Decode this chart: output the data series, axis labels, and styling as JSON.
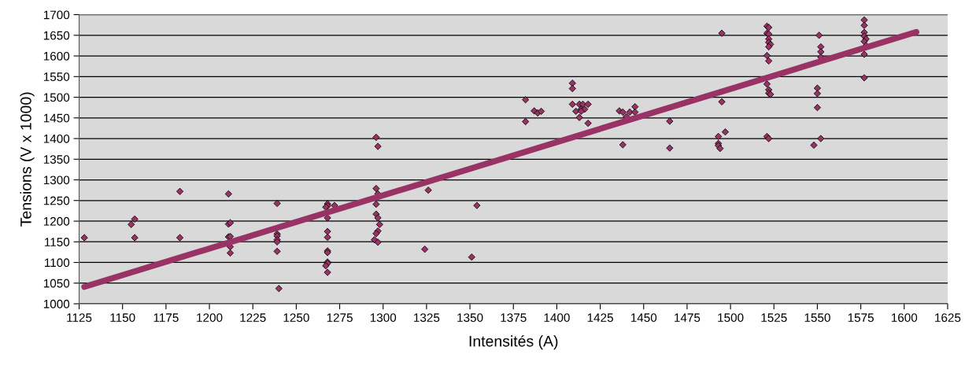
{
  "chart_data": {
    "type": "scatter",
    "xlabel": "Intensités (A)",
    "ylabel": "Tensions (V x 1000)",
    "xlim": [
      1125,
      1625
    ],
    "ylim": [
      1000,
      1700
    ],
    "xticks": [
      1125,
      1150,
      1175,
      1200,
      1225,
      1250,
      1275,
      1300,
      1325,
      1350,
      1375,
      1400,
      1425,
      1450,
      1475,
      1500,
      1525,
      1550,
      1575,
      1600,
      1625
    ],
    "yticks": [
      1000,
      1050,
      1100,
      1150,
      1200,
      1250,
      1300,
      1350,
      1400,
      1450,
      1500,
      1550,
      1600,
      1650,
      1700
    ],
    "grid": "y",
    "legend": false,
    "series": [
      {
        "marker": "diamond",
        "color": "#993366",
        "x": [
          1128,
          1155,
          1157,
          1157,
          1183,
          1183,
          1211,
          1211,
          1212,
          1211,
          1212,
          1212,
          1212,
          1239,
          1239,
          1239,
          1239,
          1239,
          1239,
          1240,
          1268,
          1268,
          1267,
          1268,
          1268,
          1268,
          1268,
          1268,
          1268,
          1268,
          1267,
          1268,
          1272,
          1296,
          1297,
          1296,
          1296,
          1297,
          1298,
          1297,
          1296,
          1295,
          1297,
          1296,
          1297,
          1324,
          1326,
          1351,
          1354,
          1382,
          1382,
          1387,
          1389,
          1391,
          1409,
          1409,
          1409,
          1413,
          1415,
          1418,
          1411,
          1414,
          1416,
          1414,
          1413,
          1418,
          1436,
          1438,
          1440,
          1442,
          1445,
          1445,
          1438,
          1465,
          1465,
          1495,
          1495,
          1497,
          1493,
          1493,
          1493,
          1494,
          1521,
          1522,
          1521,
          1522,
          1522,
          1522,
          1523,
          1522,
          1521,
          1522,
          1521,
          1522,
          1522,
          1523,
          1521,
          1522,
          1551,
          1552,
          1552,
          1552,
          1550,
          1550,
          1550,
          1552,
          1548,
          1577,
          1577,
          1577,
          1577,
          1578,
          1577,
          1578,
          1577,
          1577
        ],
        "values": [
          1160,
          1192,
          1205,
          1160,
          1272,
          1160,
          1266,
          1193,
          1196,
          1162,
          1163,
          1138,
          1123,
          1243,
          1169,
          1164,
          1155,
          1150,
          1127,
          1037,
          1242,
          1237,
          1234,
          1208,
          1175,
          1161,
          1128,
          1124,
          1101,
          1098,
          1092,
          1076,
          1238,
          1279,
          1266,
          1241,
          1217,
          1208,
          1192,
          1176,
          1170,
          1155,
          1149,
          1403,
          1381,
          1132,
          1275,
          1113,
          1238,
          1494,
          1441,
          1467,
          1462,
          1466,
          1534,
          1521,
          1483,
          1483,
          1483,
          1483,
          1466,
          1471,
          1471,
          1466,
          1451,
          1437,
          1467,
          1464,
          1453,
          1464,
          1477,
          1464,
          1385,
          1442,
          1377,
          1655,
          1489,
          1416,
          1405,
          1388,
          1383,
          1376,
          1672,
          1669,
          1655,
          1653,
          1641,
          1633,
          1628,
          1622,
          1601,
          1588,
          1532,
          1518,
          1510,
          1507,
          1405,
          1400,
          1650,
          1622,
          1610,
          1597,
          1522,
          1509,
          1475,
          1400,
          1384,
          1687,
          1674,
          1657,
          1648,
          1641,
          1635,
          1625,
          1604,
          1547
        ]
      },
      {
        "type": "line",
        "marker": "none",
        "color": "#993366",
        "x": [
          1128,
          1607
        ],
        "values": [
          1041,
          1658
        ]
      }
    ]
  }
}
